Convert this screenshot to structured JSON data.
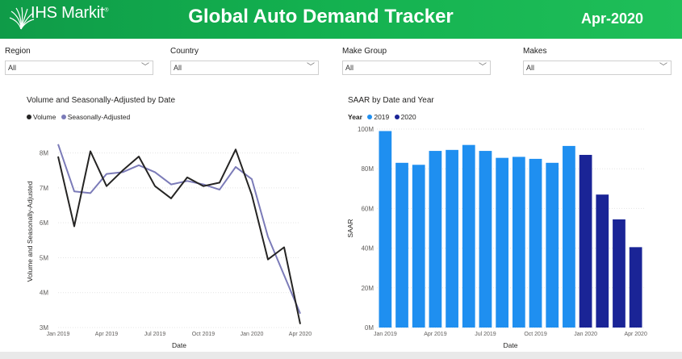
{
  "header": {
    "logo_text": "IHS Markit",
    "title": "Global Auto Demand Tracker",
    "date": "Apr-2020",
    "background_color": "#13a64e"
  },
  "filters": [
    {
      "label": "Region",
      "value": "All"
    },
    {
      "label": "Country",
      "value": "All"
    },
    {
      "label": "Make Group",
      "value": "All"
    },
    {
      "label": "Makes",
      "value": "All"
    }
  ],
  "chart_data": [
    {
      "type": "line",
      "title": "Volume and Seasonally-Adjusted by Date",
      "legend_title": "",
      "xlabel": "Date",
      "ylabel": "Volume and Seasonally-Adjusted",
      "x": [
        "2019-01",
        "2019-02",
        "2019-03",
        "2019-04",
        "2019-05",
        "2019-06",
        "2019-07",
        "2019-08",
        "2019-09",
        "2019-10",
        "2019-11",
        "2019-12",
        "2020-01",
        "2020-02",
        "2020-03",
        "2020-04"
      ],
      "x_tick_labels": [
        "Jan 2019",
        "Apr 2019",
        "Jul 2019",
        "Oct 2019",
        "Jan 2020",
        "Apr 2020"
      ],
      "x_tick_positions": [
        "2019-01",
        "2019-04",
        "2019-07",
        "2019-10",
        "2020-01",
        "2020-04"
      ],
      "y_tick_labels": [
        "3M",
        "4M",
        "5M",
        "6M",
        "7M",
        "8M"
      ],
      "y_ticks": [
        3000000,
        4000000,
        5000000,
        6000000,
        7000000,
        8000000
      ],
      "ylim": [
        3000000,
        8500000
      ],
      "grid": true,
      "legend_position": "top-left",
      "series": [
        {
          "name": "Volume",
          "color": "#252423",
          "values": [
            7900000,
            5900000,
            8050000,
            7050000,
            7500000,
            7900000,
            7050000,
            6700000,
            7300000,
            7050000,
            7150000,
            8100000,
            6800000,
            4950000,
            5300000,
            3100000
          ]
        },
        {
          "name": "Seasonally-Adjusted",
          "color": "#7b7bb8",
          "values": [
            8250000,
            6900000,
            6850000,
            7400000,
            7450000,
            7650000,
            7450000,
            7100000,
            7200000,
            7100000,
            6950000,
            7600000,
            7250000,
            5600000,
            4500000,
            3400000
          ]
        }
      ]
    },
    {
      "type": "bar",
      "title": "SAAR by Date and Year",
      "legend_title": "Year",
      "xlabel": "Date",
      "ylabel": "SAAR",
      "categories": [
        "2019-01",
        "2019-02",
        "2019-03",
        "2019-04",
        "2019-05",
        "2019-06",
        "2019-07",
        "2019-08",
        "2019-09",
        "2019-10",
        "2019-11",
        "2019-12",
        "2020-01",
        "2020-02",
        "2020-03",
        "2020-04"
      ],
      "x_tick_labels": [
        "Jan 2019",
        "Apr 2019",
        "Jul 2019",
        "Oct 2019",
        "Jan 2020",
        "Apr 2020"
      ],
      "x_tick_positions": [
        "2019-01",
        "2019-04",
        "2019-07",
        "2019-10",
        "2020-01",
        "2020-04"
      ],
      "y_tick_labels": [
        "0M",
        "20M",
        "40M",
        "60M",
        "80M",
        "100M"
      ],
      "y_ticks": [
        0,
        20000000,
        40000000,
        60000000,
        80000000,
        100000000
      ],
      "ylim": [
        0,
        100000000
      ],
      "grid": true,
      "legend_position": "top-left",
      "series": [
        {
          "name": "2019",
          "color": "#1f8ff0",
          "values": [
            99000000,
            83000000,
            82000000,
            89000000,
            89500000,
            92000000,
            89000000,
            85500000,
            86000000,
            85000000,
            83000000,
            91500000,
            null,
            null,
            null,
            null
          ]
        },
        {
          "name": "2020",
          "color": "#1a2496",
          "values": [
            null,
            null,
            null,
            null,
            null,
            null,
            null,
            null,
            null,
            null,
            null,
            null,
            87000000,
            67000000,
            54500000,
            40500000
          ]
        }
      ]
    }
  ]
}
